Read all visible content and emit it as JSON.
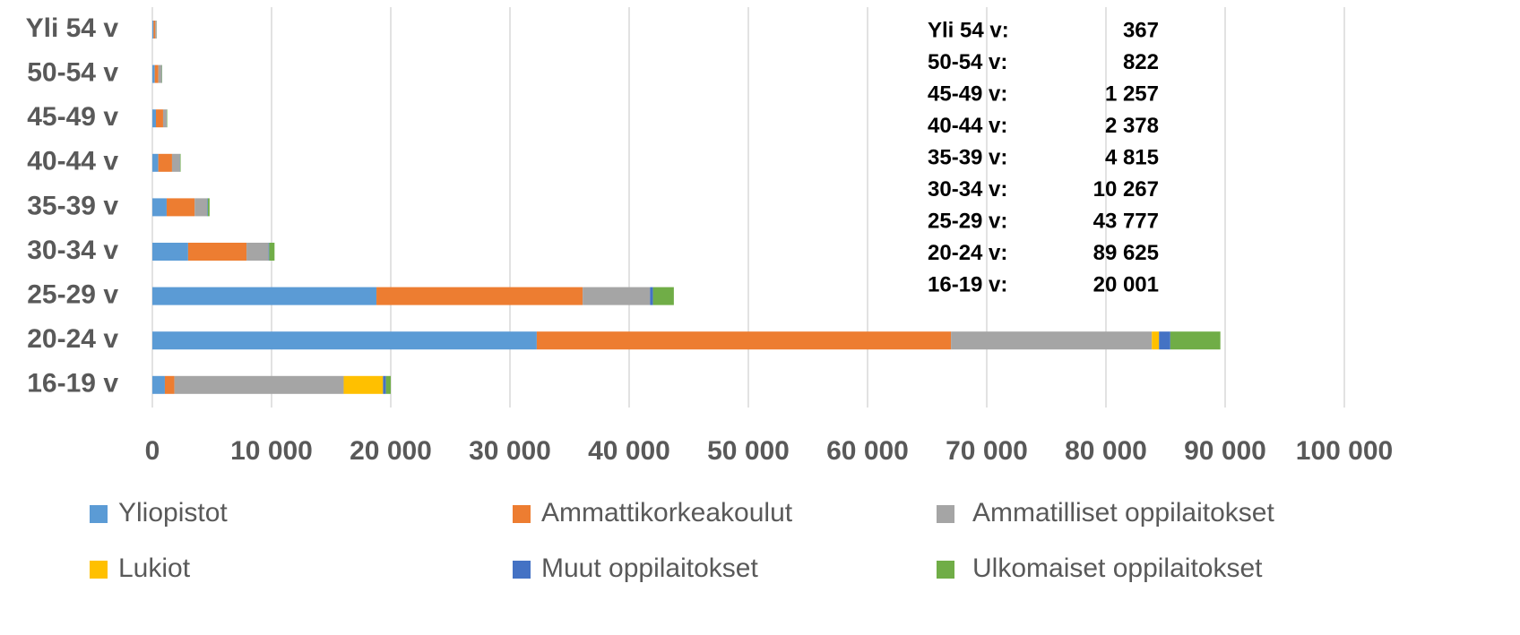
{
  "chart_data": {
    "type": "stacked-barh",
    "categories": [
      "Yli 54 v",
      "50-54 v",
      "45-49 v",
      "40-44 v",
      "35-39 v",
      "30-34 v",
      "25-29 v",
      "20-24 v",
      "16-19 v"
    ],
    "series": [
      {
        "name": "Yliopistot",
        "color": "#5b9bd5",
        "values": [
          100,
          200,
          300,
          500,
          1200,
          3000,
          18800,
          32250,
          1050
        ]
      },
      {
        "name": "Ammattikorkeakoulut",
        "color": "#ed7d31",
        "values": [
          150,
          300,
          600,
          1150,
          2350,
          4900,
          17300,
          34750,
          800
        ]
      },
      {
        "name": "Ammatilliset oppilaitokset",
        "color": "#a5a5a5",
        "values": [
          100,
          280,
          300,
          650,
          1050,
          1850,
          5650,
          16850,
          14200
        ]
      },
      {
        "name": "Lukiot",
        "color": "#ffc000",
        "values": [
          0,
          0,
          0,
          0,
          0,
          0,
          0,
          600,
          3300
        ]
      },
      {
        "name": "Muut oppilaitokset",
        "color": "#4472c4",
        "values": [
          5,
          10,
          10,
          20,
          50,
          50,
          250,
          950,
          250
        ]
      },
      {
        "name": "Ulkomaiset oppilaitokset",
        "color": "#70ad47",
        "values": [
          10,
          30,
          40,
          50,
          150,
          450,
          1750,
          4200,
          400
        ]
      }
    ],
    "xlim": [
      0,
      100000
    ],
    "xticks": [
      0,
      {
        "value": 10000,
        "label": "10 000"
      },
      {
        "value": 20000,
        "label": "20 000"
      },
      {
        "value": 30000,
        "label": "30 000"
      },
      {
        "value": 40000,
        "label": "40 000"
      },
      {
        "value": 50000,
        "label": "50 000"
      },
      {
        "value": 60000,
        "label": "60 000"
      },
      {
        "value": 70000,
        "label": "70 000"
      },
      {
        "value": 80000,
        "label": "80 000"
      },
      {
        "value": 90000,
        "label": "90 000"
      },
      {
        "value": 100000,
        "label": "100 000"
      }
    ],
    "grid": true,
    "legend": "bottom",
    "annotations": [
      {
        "label": "Yli 54 v:",
        "value": "367"
      },
      {
        "label": "50-54 v:",
        "value": "822"
      },
      {
        "label": "45-49 v:",
        "value": "1 257"
      },
      {
        "label": "40-44 v:",
        "value": "2 378"
      },
      {
        "label": "35-39 v:",
        "value": "4 815"
      },
      {
        "label": "30-34 v:",
        "value": "10 267"
      },
      {
        "label": "25-29 v:",
        "value": "43 777"
      },
      {
        "label": "20-24 v:",
        "value": "89 625"
      },
      {
        "label": "16-19 v:",
        "value": "20 001"
      }
    ]
  }
}
